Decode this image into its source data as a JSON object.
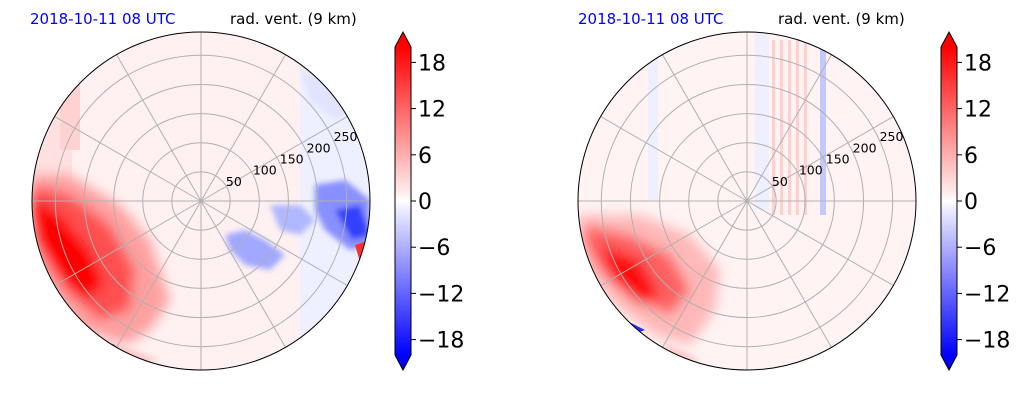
{
  "chart_data": [
    {
      "type": "heatmap",
      "projection": "polar",
      "title_left": "2018-10-11 08 UTC",
      "title_right": "rad. vent. (9 km)",
      "radial_ticks": [
        "50",
        "100",
        "150",
        "200",
        "250"
      ],
      "colorbar_ticks": [
        "18",
        "12",
        "6",
        "0",
        "−6",
        "−12",
        "−18"
      ],
      "colorbar_range": [
        -20,
        20
      ],
      "colormap": "bwr",
      "colors": {
        "positive": "#ff0000",
        "negative": "#0000ff",
        "neutral": "#ffffff",
        "title_left": "#0000ff"
      },
      "features": "strong positive (red) sector toward west-southwest; weak negative (blue) patches toward east-southeast"
    },
    {
      "type": "heatmap",
      "projection": "polar",
      "title_left": "2018-10-11 08 UTC",
      "title_right": "rad. vent. (9 km)",
      "radial_ticks": [
        "50",
        "100",
        "150",
        "200",
        "250"
      ],
      "colorbar_ticks": [
        "18",
        "12",
        "6",
        "0",
        "−6",
        "−12",
        "−18"
      ],
      "colorbar_range": [
        -20,
        20
      ],
      "colormap": "bwr",
      "colors": {
        "positive": "#ff0000",
        "negative": "#0000ff",
        "neutral": "#ffffff",
        "title_left": "#0000ff"
      },
      "features": "positive (red) region toward southwest; faint vertical stripes near north-northeast"
    }
  ]
}
